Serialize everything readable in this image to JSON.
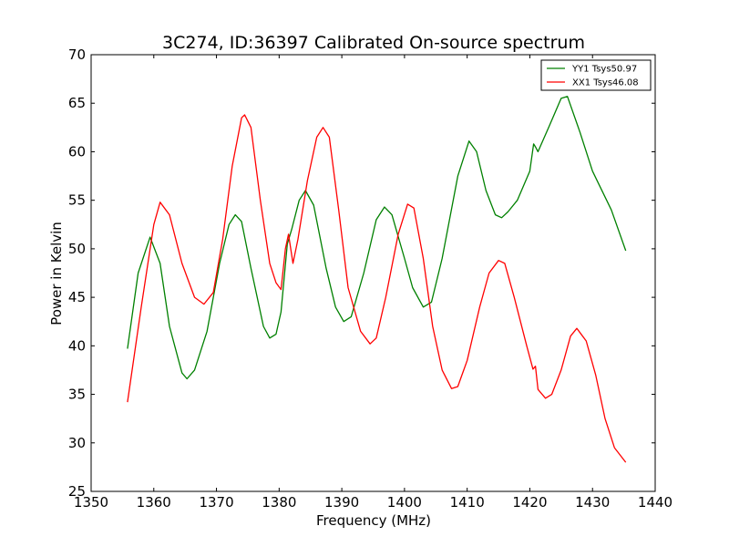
{
  "chart_data": {
    "type": "line",
    "title": "3C274, ID:36397 Calibrated On-source spectrum",
    "xlabel": "Frequency (MHz)",
    "ylabel": "Power in Kelvin",
    "xlim": [
      1350,
      1440
    ],
    "ylim": [
      25,
      70
    ],
    "xticks": [
      1350,
      1360,
      1370,
      1380,
      1390,
      1400,
      1410,
      1420,
      1430,
      1440
    ],
    "yticks": [
      25,
      30,
      35,
      40,
      45,
      50,
      55,
      60,
      65,
      70
    ],
    "grid": false,
    "legend_position": "top-right",
    "series": [
      {
        "name": "YY1 Tsys50.97",
        "color": "#008000",
        "x": [
          1355.8,
          1357.5,
          1359.4,
          1361.0,
          1362.5,
          1364.5,
          1365.3,
          1366.5,
          1368.5,
          1370.5,
          1372.0,
          1373.0,
          1374.0,
          1375.5,
          1377.5,
          1378.5,
          1379.5,
          1380.3,
          1381.3,
          1382.0,
          1383.2,
          1384.2,
          1385.5,
          1387.5,
          1389.0,
          1390.3,
          1391.5,
          1393.5,
          1395.5,
          1396.8,
          1398.0,
          1400.0,
          1401.3,
          1403.0,
          1404.3,
          1406.0,
          1408.5,
          1410.3,
          1411.5,
          1413.0,
          1414.5,
          1415.5,
          1416.5,
          1418.0,
          1420.0,
          1420.6,
          1420.9,
          1421.3,
          1423.0,
          1425.0,
          1426.0,
          1428.0,
          1430.0,
          1433.0,
          1435.3
        ],
        "values": [
          39.7,
          47.5,
          51.2,
          48.5,
          42.0,
          37.2,
          36.6,
          37.5,
          41.5,
          48.5,
          52.5,
          53.5,
          52.8,
          48.0,
          42.0,
          40.8,
          41.2,
          43.5,
          50.5,
          52.0,
          55.0,
          56.0,
          54.5,
          48.0,
          44.0,
          42.5,
          43.0,
          47.5,
          53.0,
          54.3,
          53.5,
          49.0,
          46.0,
          44.0,
          44.5,
          49.0,
          57.5,
          61.1,
          60.0,
          56.0,
          53.5,
          53.2,
          53.8,
          55.0,
          58.0,
          60.8,
          60.5,
          60.0,
          62.5,
          65.5,
          65.7,
          62.0,
          58.0,
          54.0,
          49.8
        ]
      },
      {
        "name": "XX1 Tsys46.08",
        "color": "#ff0000",
        "x": [
          1355.8,
          1358.0,
          1360.0,
          1361.0,
          1362.5,
          1364.5,
          1366.5,
          1368.0,
          1369.5,
          1371.0,
          1372.5,
          1374.0,
          1374.5,
          1375.5,
          1377.0,
          1378.5,
          1379.5,
          1380.3,
          1381.0,
          1381.5,
          1382.2,
          1383.0,
          1384.5,
          1386.0,
          1387.0,
          1388.0,
          1389.5,
          1391.0,
          1393.0,
          1394.5,
          1395.5,
          1397.0,
          1399.0,
          1400.5,
          1401.5,
          1403.0,
          1404.5,
          1406.0,
          1407.5,
          1408.5,
          1410.0,
          1412.0,
          1413.5,
          1415.0,
          1416.0,
          1417.5,
          1419.5,
          1420.5,
          1420.9,
          1421.3,
          1422.5,
          1423.5,
          1425.0,
          1426.5,
          1427.5,
          1429.0,
          1430.5,
          1432.0,
          1433.5,
          1435.3
        ],
        "values": [
          34.2,
          44.0,
          52.5,
          54.8,
          53.5,
          48.5,
          45.0,
          44.3,
          45.5,
          51.0,
          58.5,
          63.5,
          63.8,
          62.5,
          55.0,
          48.5,
          46.5,
          45.8,
          50.0,
          51.5,
          48.5,
          51.0,
          57.0,
          61.5,
          62.5,
          61.5,
          54.0,
          46.0,
          41.5,
          40.2,
          40.8,
          45.0,
          51.5,
          54.6,
          54.2,
          49.0,
          42.0,
          37.5,
          35.6,
          35.8,
          38.5,
          44.0,
          47.5,
          48.8,
          48.5,
          45.0,
          40.0,
          37.6,
          37.9,
          35.5,
          34.6,
          35.0,
          37.5,
          41.0,
          41.8,
          40.5,
          37.0,
          32.5,
          29.5,
          28.0
        ]
      }
    ]
  }
}
